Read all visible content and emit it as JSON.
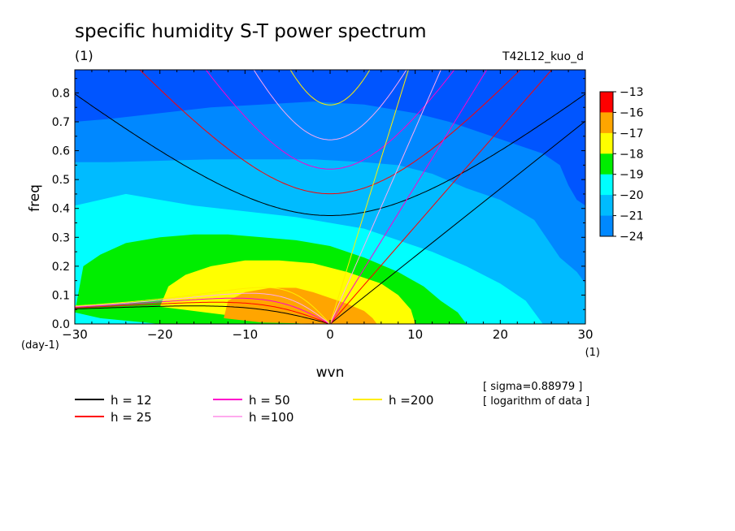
{
  "chart_data": {
    "type": "heatmap",
    "title": "specific humidity S-T power spectrum",
    "subtitle_left": "(1)",
    "subtitle_right": "T42L12_kuo_d",
    "xlabel": "wvn",
    "ylabel": "freq",
    "x_unit": "(1)",
    "y_unit": "(day-1)",
    "xlim": [
      -30,
      30
    ],
    "ylim": [
      0.0,
      0.88
    ],
    "xticks": [
      -30,
      -20,
      -10,
      0,
      10,
      20,
      30
    ],
    "yticks": [
      0.0,
      0.1,
      0.2,
      0.3,
      0.4,
      0.5,
      0.6,
      0.7,
      0.8
    ],
    "colorbar": {
      "labels": [
        "-13",
        "-16",
        "-17",
        "-18",
        "-19",
        "-20",
        "-21",
        "-24"
      ],
      "colors": [
        "#ff0000",
        "#ffa500",
        "#ffff00",
        "#00ee00",
        "#00ffff",
        "#00bbff",
        "#0088ff",
        "#0055ff"
      ]
    },
    "fill_levels": [
      {
        "level": "-21 to -24",
        "color": "#0055ff"
      },
      {
        "level": "-20 to -21",
        "color": "#0088ff"
      },
      {
        "level": "-19 to -20",
        "color": "#00bbff"
      },
      {
        "level": "-18 to -19",
        "color": "#00ffff"
      },
      {
        "level": "-17 to -18",
        "color": "#00ee00"
      },
      {
        "level": "-16 to -17",
        "color": "#ffff00"
      },
      {
        "level": "-13 to -16",
        "color": "#ffa500"
      },
      {
        "level": "above -13",
        "color": "#ff0000"
      }
    ],
    "dispersion_curves": [
      {
        "name": "h = 12",
        "h": 12,
        "color": "#000000"
      },
      {
        "name": "h = 25",
        "h": 25,
        "color": "#ff0000"
      },
      {
        "name": "h = 50",
        "h": 50,
        "color": "#ff00cc"
      },
      {
        "name": "h =100",
        "h": 100,
        "color": "#ffaaee"
      },
      {
        "name": "h =200",
        "h": 200,
        "color": "#ffee00"
      }
    ],
    "annotations": [
      "[ sigma=0.88979 ]",
      "[ logarithm of data ]"
    ],
    "grid": false,
    "legend_position": "bottom"
  }
}
